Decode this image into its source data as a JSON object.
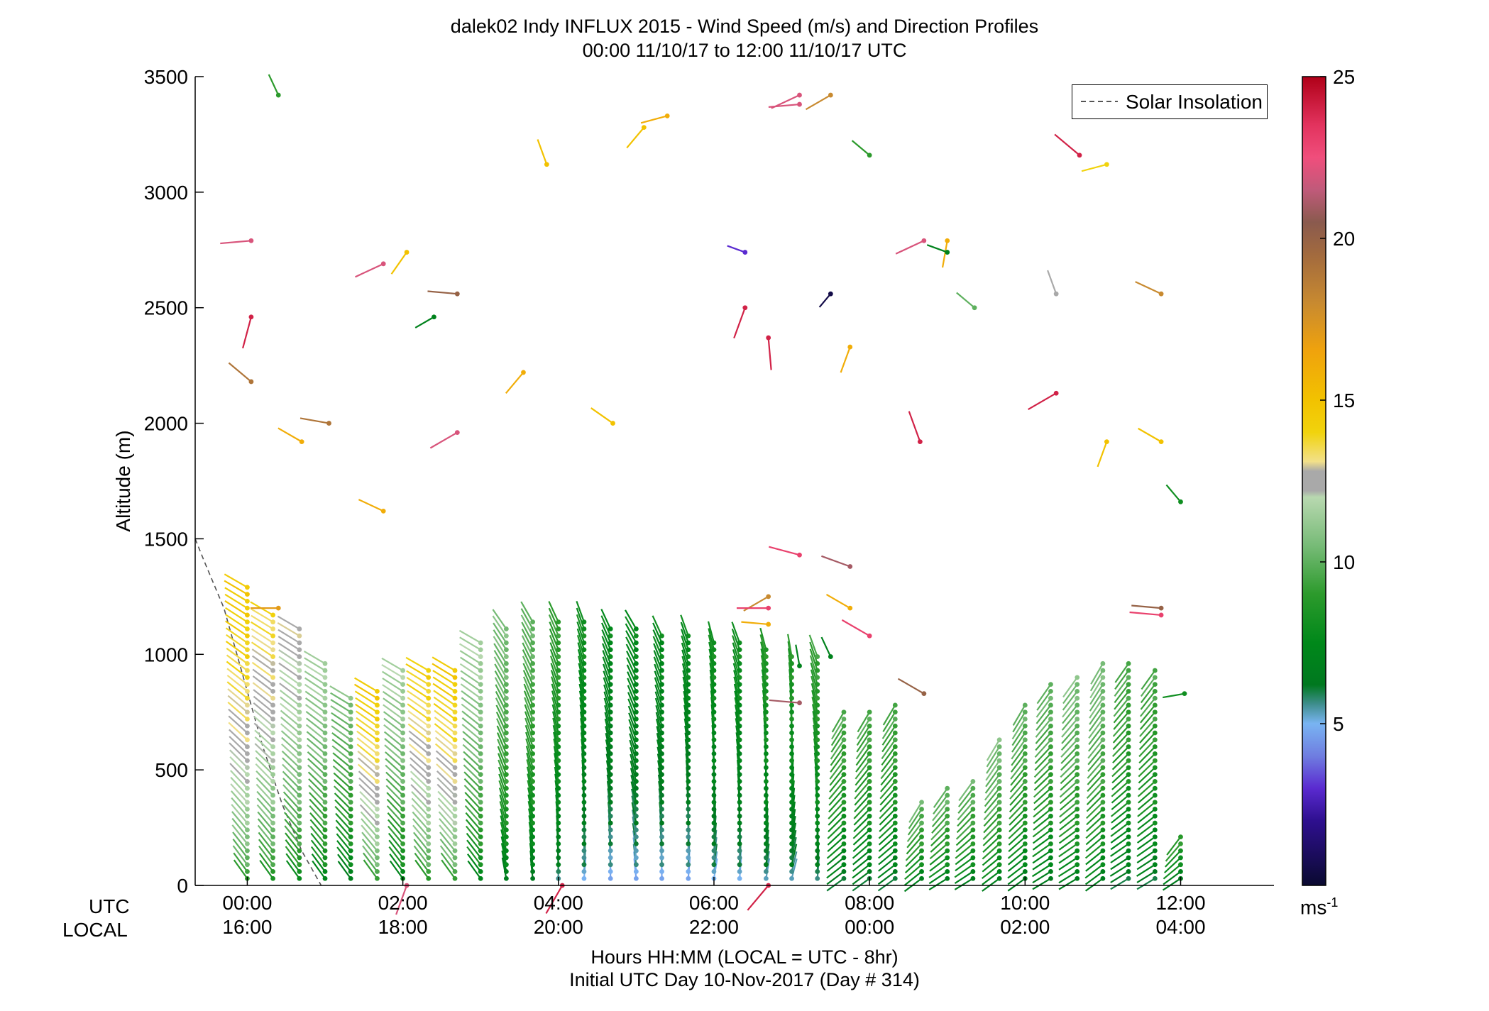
{
  "chart_data": {
    "type": "scatter",
    "title": "dalek02 Indy INFLUX 2015 - Wind Speed (m/s) and Direction Profiles",
    "subtitle": "00:00 11/10/17 to 12:00 11/10/17  UTC",
    "ylabel": "Altitude (m)",
    "xlabel": "Hours HH:MM  (LOCAL = UTC - 8hr)",
    "xlabel2": "Initial UTC Day 10-Nov-2017 (Day # 314)",
    "xlim": [
      -0.67,
      13.2
    ],
    "ylim": [
      0,
      3500
    ],
    "grid": false,
    "legend": {
      "position": "top-right",
      "entries": [
        "Solar Insolation"
      ]
    },
    "x_row_labels": [
      "UTC",
      "LOCAL"
    ],
    "x_ticks_utc": [
      "00:00",
      "02:00",
      "04:00",
      "06:00",
      "08:00",
      "10:00",
      "12:00"
    ],
    "x_ticks_local": [
      "16:00",
      "18:00",
      "20:00",
      "22:00",
      "00:00",
      "02:00",
      "04:00"
    ],
    "x_tick_values": [
      0,
      2,
      4,
      6,
      8,
      10,
      12
    ],
    "y_ticks": [
      0,
      500,
      1000,
      1500,
      2000,
      2500,
      3000,
      3500
    ],
    "colorbar": {
      "min": 0,
      "max": 25,
      "ticks": [
        5,
        10,
        15,
        20,
        25
      ],
      "unit": "ms",
      "unit_exp": "-1",
      "stops": [
        [
          0,
          "#0a0a30"
        ],
        [
          2,
          "#2e0f8f"
        ],
        [
          3,
          "#5a2ad0"
        ],
        [
          4,
          "#6f7de0"
        ],
        [
          5,
          "#79b4f2"
        ],
        [
          5.6,
          "#3f8e8e"
        ],
        [
          6.2,
          "#00781f"
        ],
        [
          7.5,
          "#00881a"
        ],
        [
          9,
          "#2c9a2c"
        ],
        [
          10.5,
          "#77bb77"
        ],
        [
          12,
          "#b8d8b0"
        ],
        [
          12.2,
          "#a9a9a9"
        ],
        [
          12.8,
          "#a9a9a9"
        ],
        [
          13.1,
          "#f2e08a"
        ],
        [
          14,
          "#f1d30d"
        ],
        [
          15,
          "#f2c200"
        ],
        [
          16.5,
          "#f0a30c"
        ],
        [
          18,
          "#c88a30"
        ],
        [
          19.5,
          "#a26a3e"
        ],
        [
          20.5,
          "#8a5a4e"
        ],
        [
          21.5,
          "#c05a7a"
        ],
        [
          22.5,
          "#f04e7c"
        ],
        [
          23.5,
          "#e2335e"
        ],
        [
          25,
          "#b00018"
        ]
      ]
    },
    "solar_insolation": {
      "x": [
        -0.67,
        -0.55,
        -0.3,
        -0.05,
        0.2,
        0.45,
        0.7,
        0.95
      ],
      "y": [
        1500,
        1400,
        1200,
        900,
        600,
        350,
        150,
        0
      ]
    },
    "profile_times": [
      0,
      0.33,
      0.67,
      1,
      1.33,
      1.67,
      2,
      2.33,
      2.67,
      3,
      3.33,
      3.67,
      4,
      4.33,
      4.67,
      5,
      5.33,
      5.67,
      6,
      6.33,
      6.67,
      7,
      7.33,
      7.67,
      8,
      8.33,
      8.67,
      9,
      9.33,
      9.67,
      10,
      10.33,
      10.67,
      11,
      11.33,
      11.67,
      12
    ],
    "profile_tops": [
      1290,
      1180,
      1120,
      980,
      820,
      860,
      940,
      930,
      950,
      1050,
      1130,
      1150,
      1150,
      1150,
      1120,
      1110,
      1100,
      1090,
      1060,
      1050,
      1030,
      1000,
      1000,
      750,
      770,
      800,
      380,
      420,
      470,
      650,
      790,
      870,
      920,
      960,
      960,
      950,
      230
    ],
    "profile_speeds": [
      14.5,
      13.5,
      12.5,
      11.5,
      10.5,
      14.5,
      11.5,
      14.0,
      14.5,
      11.5,
      10.5,
      10.0,
      9.0,
      8.0,
      7.5,
      7.5,
      7.5,
      7.5,
      8.0,
      8.0,
      8.5,
      8.5,
      9.0,
      9.5,
      9.5,
      9.5,
      10.0,
      10.0,
      10.0,
      10.5,
      10.0,
      10.0,
      10.5,
      10.5,
      9.5,
      9.5,
      9.0
    ],
    "profile_dirs_deg": [
      300,
      300,
      300,
      300,
      300,
      300,
      300,
      300,
      300,
      300,
      325,
      330,
      335,
      340,
      335,
      330,
      335,
      340,
      345,
      340,
      345,
      350,
      340,
      210,
      210,
      210,
      210,
      215,
      215,
      210,
      210,
      215,
      215,
      210,
      215,
      215,
      215
    ],
    "upper_points": [
      {
        "t": 0.4,
        "z": 3420,
        "s": 9,
        "d": 335
      },
      {
        "t": 0.05,
        "z": 2790,
        "s": 22,
        "d": 265
      },
      {
        "t": 0.05,
        "z": 2460,
        "s": 24,
        "d": 195
      },
      {
        "t": 0.05,
        "z": 2180,
        "s": 19,
        "d": 310
      },
      {
        "t": 0.7,
        "z": 1920,
        "s": 16,
        "d": 300
      },
      {
        "t": 1.05,
        "z": 2000,
        "s": 19,
        "d": 280
      },
      {
        "t": 1.75,
        "z": 1620,
        "s": 16,
        "d": 295
      },
      {
        "t": 1.75,
        "z": 2690,
        "s": 22,
        "d": 245
      },
      {
        "t": 2.05,
        "z": 2740,
        "s": 15,
        "d": 215
      },
      {
        "t": 2.4,
        "z": 2460,
        "s": 7,
        "d": 240
      },
      {
        "t": 2.7,
        "z": 1960,
        "s": 22,
        "d": 240
      },
      {
        "t": 2.7,
        "z": 2560,
        "s": 20,
        "d": 275
      },
      {
        "t": 3.55,
        "z": 2220,
        "s": 16,
        "d": 220
      },
      {
        "t": 3.85,
        "z": 3120,
        "s": 15,
        "d": 340
      },
      {
        "t": 4.7,
        "z": 2000,
        "s": 15,
        "d": 305
      },
      {
        "t": 5.1,
        "z": 3280,
        "s": 15,
        "d": 220
      },
      {
        "t": 5.4,
        "z": 3330,
        "s": 16,
        "d": 255
      },
      {
        "t": 6.4,
        "z": 2740,
        "s": 3,
        "d": 290
      },
      {
        "t": 6.4,
        "z": 2500,
        "s": 24,
        "d": 200
      },
      {
        "t": 6.7,
        "z": 2370,
        "s": 24,
        "d": 175
      },
      {
        "t": 7.1,
        "z": 3380,
        "s": 22,
        "d": 265
      },
      {
        "t": 7.1,
        "z": 3420,
        "s": 22,
        "d": 245
      },
      {
        "t": 7.5,
        "z": 3420,
        "s": 18,
        "d": 240
      },
      {
        "t": 7.5,
        "z": 2560,
        "s": 0.5,
        "d": 220
      },
      {
        "t": 7.75,
        "z": 2330,
        "s": 16,
        "d": 200
      },
      {
        "t": 8.0,
        "z": 3160,
        "s": 9,
        "d": 310
      },
      {
        "t": 8.7,
        "z": 2790,
        "s": 22,
        "d": 245
      },
      {
        "t": 9.0,
        "z": 2790,
        "s": 16,
        "d": 190
      },
      {
        "t": 9.0,
        "z": 2740,
        "s": 7,
        "d": 290
      },
      {
        "t": 8.65,
        "z": 1920,
        "s": 24,
        "d": 340
      },
      {
        "t": 9.35,
        "z": 2500,
        "s": 10,
        "d": 310
      },
      {
        "t": 10.4,
        "z": 2560,
        "s": 12.5,
        "d": 340
      },
      {
        "t": 10.4,
        "z": 2130,
        "s": 24,
        "d": 240
      },
      {
        "t": 10.7,
        "z": 3160,
        "s": 24,
        "d": 310
      },
      {
        "t": 11.05,
        "z": 3120,
        "s": 14,
        "d": 255
      },
      {
        "t": 11.05,
        "z": 1920,
        "s": 15,
        "d": 200
      },
      {
        "t": 11.75,
        "z": 2560,
        "s": 18,
        "d": 295
      },
      {
        "t": 11.75,
        "z": 1920,
        "s": 15,
        "d": 300
      },
      {
        "t": 12.0,
        "z": 1660,
        "s": 8,
        "d": 320
      },
      {
        "t": 7.1,
        "z": 1430,
        "s": 23,
        "d": 285
      },
      {
        "t": 7.75,
        "z": 1380,
        "s": 21,
        "d": 290
      },
      {
        "t": 7.75,
        "z": 1200,
        "s": 16,
        "d": 300
      },
      {
        "t": 8.0,
        "z": 1080,
        "s": 23,
        "d": 300
      },
      {
        "t": 6.7,
        "z": 1250,
        "s": 18,
        "d": 240
      },
      {
        "t": 6.7,
        "z": 1200,
        "s": 23,
        "d": 270
      },
      {
        "t": 6.7,
        "z": 1130,
        "s": 16,
        "d": 275
      },
      {
        "t": 7.1,
        "z": 790,
        "s": 21,
        "d": 275
      },
      {
        "t": 8.7,
        "z": 830,
        "s": 20,
        "d": 300
      },
      {
        "t": 11.75,
        "z": 1200,
        "s": 20,
        "d": 275
      },
      {
        "t": 11.75,
        "z": 1170,
        "s": 23,
        "d": 275
      },
      {
        "t": 12.05,
        "z": 830,
        "s": 8,
        "d": 260
      },
      {
        "t": 0.4,
        "z": 1200,
        "s": 17,
        "d": 270
      },
      {
        "t": 6.7,
        "z": 0,
        "s": 24,
        "d": 220
      },
      {
        "t": 2.05,
        "z": 0,
        "s": 22,
        "d": 200
      },
      {
        "t": 4.05,
        "z": 0,
        "s": 24,
        "d": 210
      },
      {
        "t": 7.1,
        "z": 950,
        "s": 7,
        "d": 350
      },
      {
        "t": 7.5,
        "z": 990,
        "s": 7,
        "d": 335
      }
    ]
  }
}
